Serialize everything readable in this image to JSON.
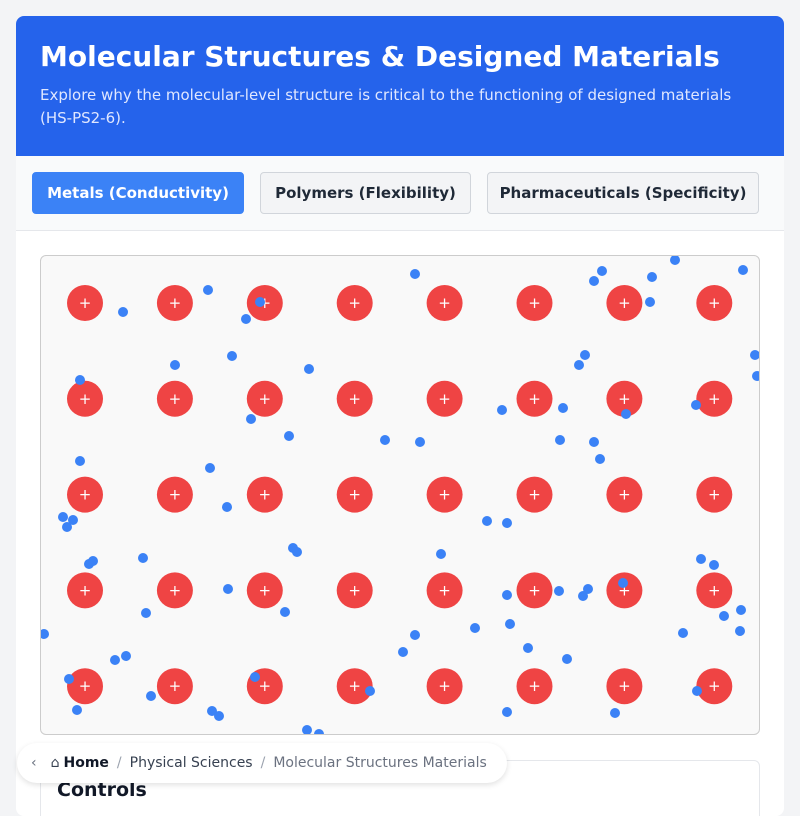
{
  "header": {
    "title": "Molecular Structures & Designed Materials",
    "subtitle": "Explore why the molecular-level structure is critical to the functioning of designed materials (HS-PS2-6)."
  },
  "tabs": [
    {
      "label": "Metals (Conductivity)",
      "active": true
    },
    {
      "label": "Polymers (Flexibility)",
      "active": false
    },
    {
      "label": "Pharmaceuticals (Specificity)",
      "active": false
    }
  ],
  "simulation": {
    "ion_symbol": "+",
    "ion_color": "#ef4444",
    "electron_color": "#3b82f6",
    "ion_rows": 5,
    "ion_cols": 8
  },
  "controls": {
    "title": "Controls"
  },
  "breadcrumb": {
    "home": "Home",
    "items": [
      "Physical Sciences",
      "Molecular Structures Materials"
    ]
  }
}
